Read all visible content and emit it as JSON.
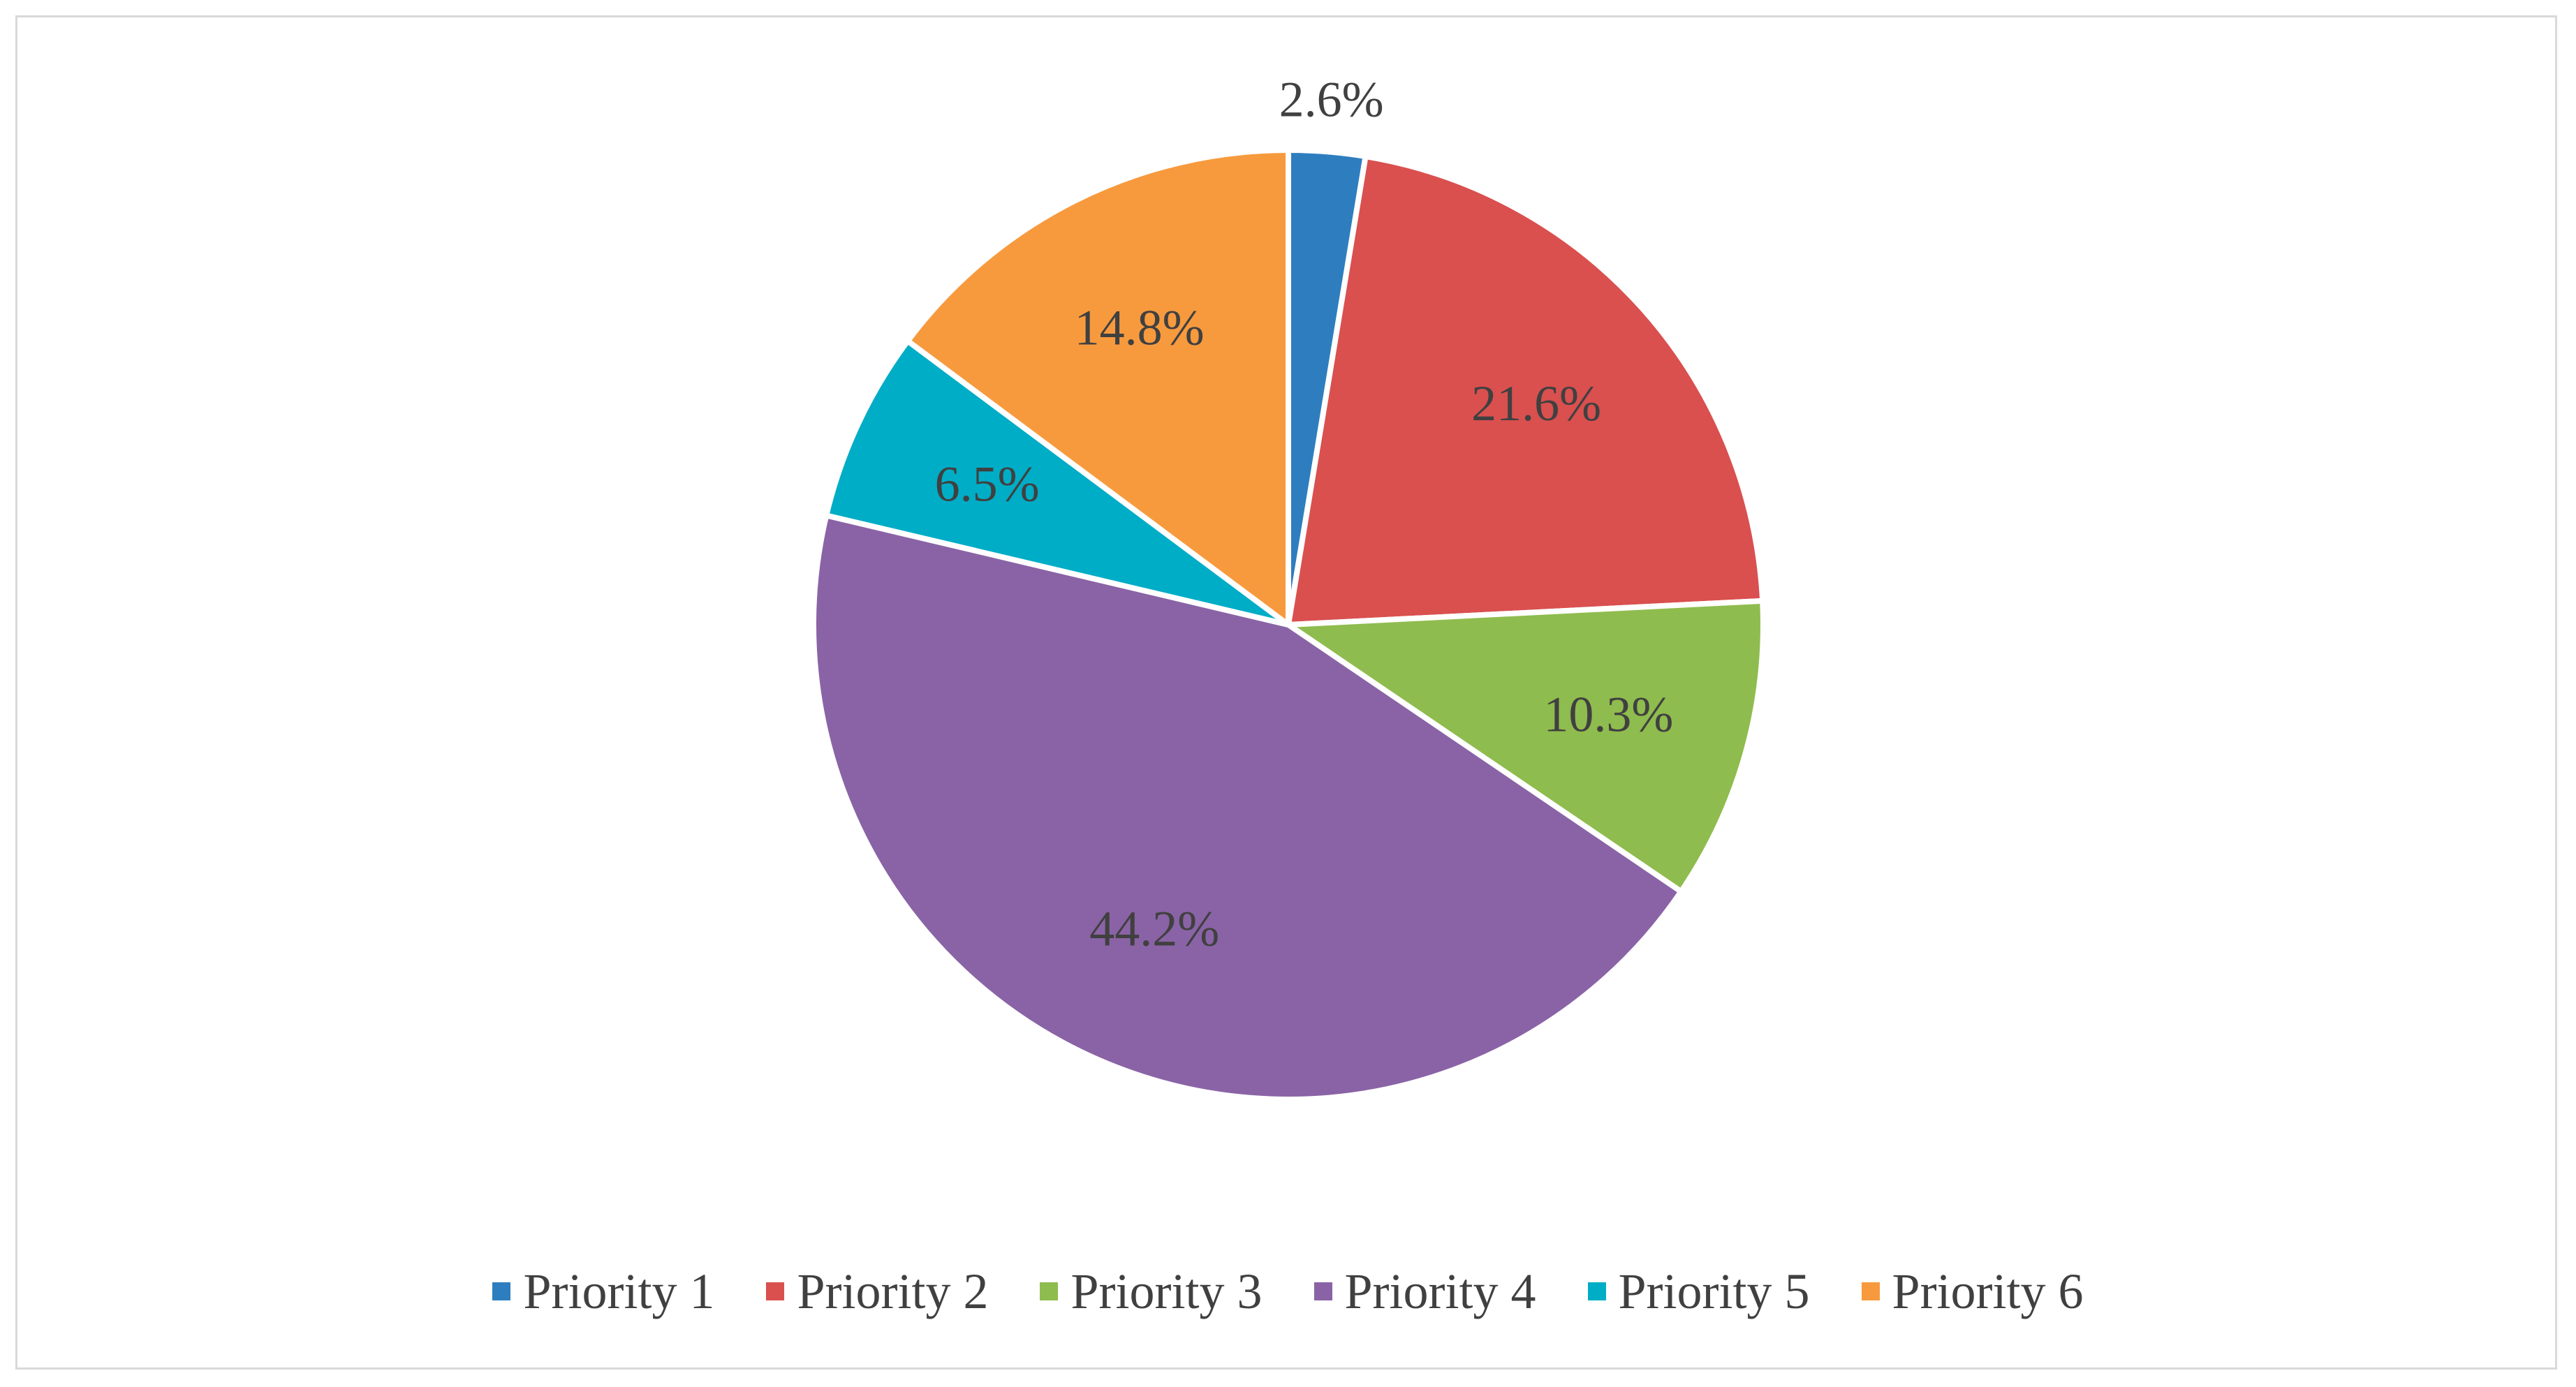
{
  "chart_data": {
    "type": "pie",
    "title": "",
    "categories": [
      "Priority 1",
      "Priority 2",
      "Priority 3",
      "Priority 4",
      "Priority 5",
      "Priority 6"
    ],
    "values": [
      2.6,
      21.6,
      10.3,
      44.2,
      6.5,
      14.8
    ],
    "labels": [
      "2.6%",
      "21.6%",
      "10.3%",
      "44.2%",
      "6.5%",
      "14.8%"
    ],
    "colors": [
      "#2e7ebf",
      "#d9504f",
      "#8fbc4e",
      "#8a63a6",
      "#00adc6",
      "#f79a3e"
    ],
    "start_angle_deg": 0,
    "direction": "clockwise",
    "legend_position": "bottom"
  }
}
